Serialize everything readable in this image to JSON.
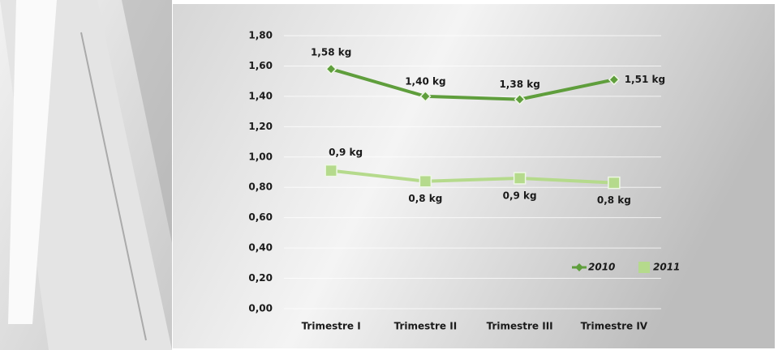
{
  "chart_data": {
    "type": "line",
    "categories": [
      "Trimestre I",
      "Trimestre II",
      "Trimestre III",
      "Trimestre IV"
    ],
    "series": [
      {
        "name": "2010",
        "color": "#5f9e3c",
        "marker": "diamond",
        "values": [
          1.58,
          1.4,
          1.38,
          1.51
        ],
        "value_labels": [
          "1,58 kg",
          "1,40 kg",
          "1,38 kg",
          "1,51 kg"
        ]
      },
      {
        "name": "2011",
        "color": "#b5da8c",
        "marker": "square",
        "values": [
          0.91,
          0.84,
          0.86,
          0.83
        ],
        "value_labels": [
          "0,9 kg",
          "0,8 kg",
          "0,9 kg",
          "0,8 kg"
        ]
      }
    ],
    "ylim": [
      0,
      1.8
    ],
    "yticks": [
      {
        "value": 0,
        "label": "0,00"
      },
      {
        "value": 0.2,
        "label": "0,20"
      },
      {
        "value": 0.4,
        "label": "0,40"
      },
      {
        "value": 0.6,
        "label": "0,60"
      },
      {
        "value": 0.8,
        "label": "0,80"
      },
      {
        "value": 1.0,
        "label": "1,00"
      },
      {
        "value": 1.2,
        "label": "1,20"
      },
      {
        "value": 1.4,
        "label": "1,40"
      },
      {
        "value": 1.6,
        "label": "1,60"
      },
      {
        "value": 1.8,
        "label": "1,80"
      }
    ],
    "grid": true,
    "legend": "lower right"
  }
}
